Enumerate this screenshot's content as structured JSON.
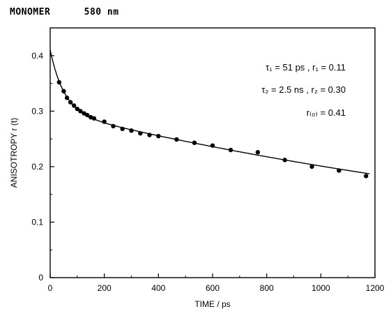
{
  "header": {
    "label": "MONOMER",
    "wavelength": "580 nm"
  },
  "chart_data": {
    "type": "scatter",
    "xlabel": "TIME / ps",
    "ylabel": "ANISOTROPY r (t)",
    "xlim": [
      0,
      1200
    ],
    "ylim": [
      0,
      0.45
    ],
    "xticks": [
      "0",
      "200",
      "400",
      "600",
      "800",
      "1000",
      "1200"
    ],
    "yticks": [
      "0",
      "0.1",
      "0.2",
      "0.3",
      "0.4"
    ],
    "annotations": {
      "tau1": "τ₁ = 51 ps , r₁ = 0.11",
      "tau2": "τ₂ = 2.5 ns , r₂ = 0.30",
      "r0": "r₍₀₎ = 0.41"
    },
    "fit": {
      "r1": 0.11,
      "tau1": 51,
      "r2": 0.3,
      "tau2": 2500
    },
    "points": {
      "x": [
        33,
        50,
        62,
        75,
        88,
        100,
        112,
        125,
        137,
        150,
        162,
        200,
        233,
        267,
        300,
        333,
        367,
        400,
        467,
        533,
        600,
        667,
        767,
        867,
        967,
        1067,
        1167
      ],
      "y": [
        0.352,
        0.336,
        0.324,
        0.316,
        0.31,
        0.304,
        0.3,
        0.296,
        0.293,
        0.289,
        0.287,
        0.281,
        0.273,
        0.268,
        0.265,
        0.26,
        0.257,
        0.255,
        0.249,
        0.243,
        0.238,
        0.23,
        0.226,
        0.212,
        0.2,
        0.193,
        0.183
      ]
    }
  }
}
